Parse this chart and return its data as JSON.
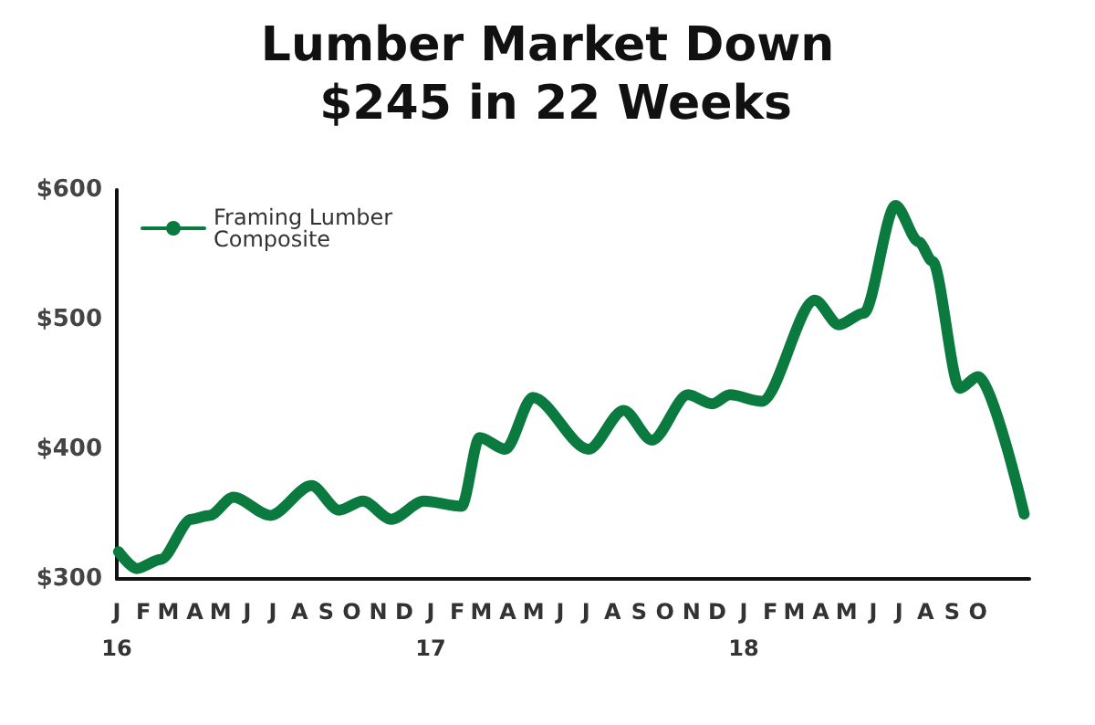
{
  "chart_data": {
    "type": "line",
    "title": "Lumber Market Down $245 in 22 Weeks",
    "x": [
      "2016-01-03",
      "2016-01-24",
      "2016-02-21",
      "2016-03-28",
      "2016-04-18",
      "2016-05-16",
      "2016-06-28",
      "2016-08-15",
      "2016-09-16",
      "2016-10-14",
      "2016-11-16",
      "2016-12-24",
      "2017-02-06",
      "2017-02-27",
      "2017-03-29",
      "2017-04-30",
      "2017-07-04",
      "2017-08-14",
      "2017-09-16",
      "2017-10-28",
      "2017-11-25",
      "2017-12-16",
      "2018-01-22",
      "2018-03-25",
      "2018-04-22",
      "2018-05-21",
      "2018-06-27",
      "2018-07-24",
      "2018-08-09",
      "2018-09-10",
      "2018-10-01",
      "2018-11-24"
    ],
    "series": [
      {
        "name": "Framing Lumber Composite",
        "color": "#0b7a3e",
        "values": [
          321,
          308,
          315,
          346,
          349,
          363,
          349,
          372,
          353,
          360,
          346,
          360,
          356,
          409,
          400,
          440,
          400,
          430,
          407,
          442,
          435,
          442,
          437,
          515,
          496,
          505,
          588,
          560,
          545,
          447,
          456,
          350
        ]
      }
    ],
    "xlim": [
      "2016-01-01",
      "2018-11-30"
    ],
    "xticks": [
      {
        "value": "2016-01-01",
        "label": "J\n16"
      },
      {
        "value": "2016-02-01",
        "label": "F"
      },
      {
        "value": "2016-03-01",
        "label": "M"
      },
      {
        "value": "2016-04-01",
        "label": "A"
      },
      {
        "value": "2016-05-01",
        "label": "M"
      },
      {
        "value": "2016-06-01",
        "label": "J"
      },
      {
        "value": "2016-07-01",
        "label": "J"
      },
      {
        "value": "2016-08-01",
        "label": "A"
      },
      {
        "value": "2016-09-01",
        "label": "S"
      },
      {
        "value": "2016-10-01",
        "label": "O"
      },
      {
        "value": "2016-11-01",
        "label": "N"
      },
      {
        "value": "2016-12-01",
        "label": "D"
      },
      {
        "value": "2017-01-01",
        "label": "J\n17"
      },
      {
        "value": "2017-02-01",
        "label": "F"
      },
      {
        "value": "2017-03-01",
        "label": "M"
      },
      {
        "value": "2017-04-01",
        "label": "A"
      },
      {
        "value": "2017-05-01",
        "label": "M"
      },
      {
        "value": "2017-06-01",
        "label": "J"
      },
      {
        "value": "2017-07-01",
        "label": "J"
      },
      {
        "value": "2017-08-01",
        "label": "A"
      },
      {
        "value": "2017-09-01",
        "label": "S"
      },
      {
        "value": "2017-10-01",
        "label": "O"
      },
      {
        "value": "2017-11-01",
        "label": "N"
      },
      {
        "value": "2017-12-01",
        "label": "D"
      },
      {
        "value": "2018-01-01",
        "label": "J\n18"
      },
      {
        "value": "2018-02-01",
        "label": "F"
      },
      {
        "value": "2018-03-01",
        "label": "M"
      },
      {
        "value": "2018-04-01",
        "label": "A"
      },
      {
        "value": "2018-05-01",
        "label": "M"
      },
      {
        "value": "2018-06-01",
        "label": "J"
      },
      {
        "value": "2018-07-01",
        "label": "J"
      },
      {
        "value": "2018-08-01",
        "label": "A"
      },
      {
        "value": "2018-09-01",
        "label": "S"
      },
      {
        "value": "2018-10-01",
        "label": "O"
      }
    ],
    "ylim": [
      300,
      600
    ],
    "yticks": [
      {
        "value": 300,
        "label": "$300"
      },
      {
        "value": 400,
        "label": "$400"
      },
      {
        "value": 500,
        "label": "$500"
      },
      {
        "value": 600,
        "label": "$600"
      }
    ],
    "grid": false,
    "legend": "top left",
    "marker": "none",
    "line_style": "solid"
  }
}
